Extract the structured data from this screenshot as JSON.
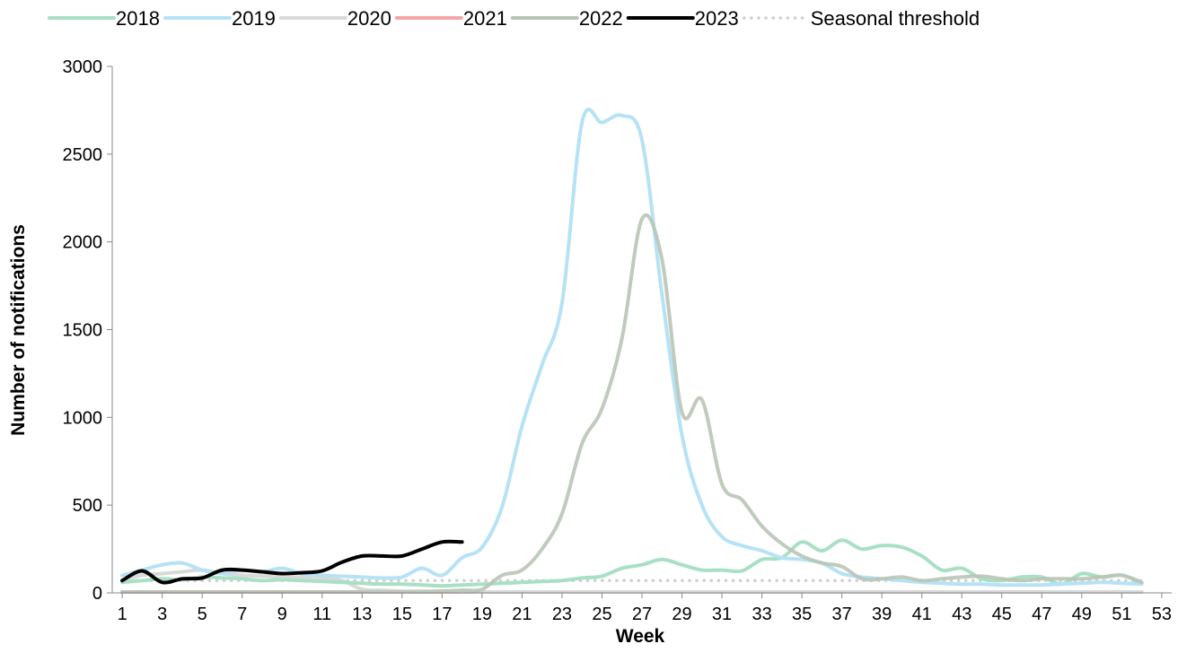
{
  "chart_data": {
    "type": "line",
    "title": "",
    "xlabel": "Week",
    "ylabel": "Number of notifications",
    "xlim": [
      0.5,
      53.5
    ],
    "ylim": [
      0,
      3000
    ],
    "y_ticks": [
      0,
      500,
      1000,
      1500,
      2000,
      2500,
      3000
    ],
    "x_ticks": [
      1,
      3,
      5,
      7,
      9,
      11,
      13,
      15,
      17,
      19,
      21,
      23,
      25,
      27,
      29,
      31,
      33,
      35,
      37,
      39,
      41,
      43,
      45,
      47,
      49,
      51,
      53
    ],
    "grid": false,
    "legend_position": "top",
    "series": [
      {
        "name": "2018",
        "color": "#a8e0c4",
        "dash": "solid",
        "x": [
          1,
          2,
          3,
          4,
          5,
          6,
          7,
          8,
          9,
          10,
          11,
          12,
          13,
          14,
          15,
          16,
          17,
          18,
          19,
          20,
          21,
          22,
          23,
          24,
          25,
          26,
          27,
          28,
          29,
          30,
          31,
          32,
          33,
          34,
          35,
          36,
          37,
          38,
          39,
          40,
          41,
          42,
          43,
          44,
          45,
          46,
          47,
          48,
          49,
          50,
          51,
          52
        ],
        "y": [
          60,
          70,
          80,
          75,
          90,
          85,
          80,
          70,
          75,
          70,
          65,
          60,
          55,
          50,
          50,
          45,
          40,
          45,
          50,
          55,
          60,
          65,
          70,
          85,
          95,
          140,
          160,
          190,
          160,
          130,
          130,
          125,
          190,
          200,
          290,
          240,
          300,
          250,
          270,
          260,
          210,
          130,
          140,
          80,
          70,
          90,
          90,
          50,
          110,
          90,
          100,
          55
        ]
      },
      {
        "name": "2019",
        "color": "#b5e2f5",
        "dash": "solid",
        "x": [
          1,
          2,
          3,
          4,
          5,
          6,
          7,
          8,
          9,
          10,
          11,
          12,
          13,
          14,
          15,
          16,
          17,
          18,
          19,
          20,
          21,
          22,
          23,
          24,
          25,
          26,
          27,
          28,
          29,
          30,
          31,
          32,
          33,
          34,
          35,
          36,
          37,
          38,
          39,
          40,
          41,
          42,
          43,
          44,
          45,
          46,
          47,
          48,
          49,
          50,
          51,
          52
        ],
        "y": [
          100,
          130,
          160,
          170,
          130,
          110,
          130,
          120,
          140,
          110,
          100,
          95,
          90,
          85,
          90,
          140,
          100,
          200,
          260,
          490,
          950,
          1300,
          1650,
          2680,
          2680,
          2720,
          2580,
          1700,
          900,
          500,
          320,
          270,
          240,
          200,
          190,
          170,
          110,
          90,
          80,
          70,
          60,
          55,
          50,
          50,
          45,
          45,
          45,
          50,
          55,
          60,
          55,
          50
        ]
      },
      {
        "name": "2020",
        "color": "#d9d9d9",
        "dash": "solid",
        "x": [
          1,
          2,
          3,
          4,
          5,
          6,
          7,
          8,
          9,
          10,
          11,
          12,
          13,
          14,
          15,
          16,
          17,
          18,
          19,
          20,
          21,
          22,
          23,
          24,
          25,
          26,
          27,
          28,
          29,
          30,
          31,
          32,
          33,
          34,
          35,
          36,
          37,
          38,
          39,
          40,
          41,
          42,
          43,
          44,
          45,
          46,
          47,
          48,
          49,
          50,
          51,
          52
        ],
        "y": [
          70,
          100,
          110,
          120,
          130,
          110,
          100,
          95,
          90,
          90,
          85,
          70,
          20,
          15,
          10,
          10,
          8,
          6,
          5,
          5,
          5,
          5,
          5,
          5,
          5,
          5,
          5,
          5,
          5,
          5,
          5,
          5,
          5,
          5,
          5,
          5,
          5,
          5,
          5,
          5,
          5,
          5,
          5,
          5,
          5,
          5,
          5,
          5,
          5,
          5,
          5,
          5
        ]
      },
      {
        "name": "2021",
        "color": "#f4a6a6",
        "dash": "solid",
        "x": [
          1,
          2,
          3,
          4,
          5,
          6,
          7,
          8,
          9,
          10,
          11,
          12,
          13,
          14,
          15,
          16,
          17,
          18,
          19,
          20,
          21,
          22,
          23,
          24,
          25,
          26,
          27,
          28,
          29,
          30,
          31,
          32,
          33,
          34,
          35,
          36,
          37,
          38,
          39,
          40,
          41,
          42,
          43,
          44,
          45,
          46,
          47,
          48,
          49,
          50,
          51,
          52
        ],
        "y": [
          5,
          5,
          5,
          5,
          5,
          5,
          5,
          5,
          5,
          5,
          5,
          5,
          5,
          5,
          5,
          5,
          5,
          5,
          5,
          5,
          5,
          5,
          5,
          5,
          5,
          5,
          5,
          5,
          5,
          5,
          5,
          5,
          5,
          5,
          5,
          5,
          5,
          5,
          5,
          5,
          5,
          5,
          5,
          5,
          5,
          5,
          5,
          5,
          5,
          5,
          5,
          5
        ]
      },
      {
        "name": "2022",
        "color": "#b9c4b6",
        "dash": "solid",
        "x": [
          1,
          2,
          3,
          4,
          5,
          6,
          7,
          8,
          9,
          10,
          11,
          12,
          13,
          14,
          15,
          16,
          17,
          18,
          19,
          20,
          21,
          22,
          23,
          24,
          25,
          26,
          27,
          28,
          29,
          30,
          31,
          32,
          33,
          34,
          35,
          36,
          37,
          38,
          39,
          40,
          41,
          42,
          43,
          44,
          45,
          46,
          47,
          48,
          49,
          50,
          51,
          52
        ],
        "y": [
          5,
          5,
          5,
          5,
          5,
          5,
          5,
          5,
          5,
          5,
          5,
          5,
          5,
          5,
          5,
          5,
          10,
          15,
          20,
          100,
          130,
          250,
          450,
          850,
          1050,
          1450,
          2130,
          1900,
          1030,
          1100,
          620,
          530,
          380,
          280,
          210,
          170,
          150,
          80,
          80,
          90,
          70,
          80,
          90,
          95,
          80,
          70,
          80,
          80,
          80,
          90,
          100,
          60
        ]
      },
      {
        "name": "2023",
        "color": "#000000",
        "dash": "solid",
        "x": [
          1,
          2,
          3,
          4,
          5,
          6,
          7,
          8,
          9,
          10,
          11,
          12,
          13,
          14,
          15,
          16,
          17,
          18
        ],
        "y": [
          70,
          125,
          60,
          80,
          85,
          130,
          130,
          120,
          110,
          115,
          125,
          175,
          210,
          210,
          210,
          250,
          290,
          290
        ]
      },
      {
        "name": "Seasonal threshold",
        "color": "#d0d0d0",
        "dash": "dotted",
        "x": [
          1,
          2,
          3,
          4,
          5,
          6,
          7,
          8,
          9,
          10,
          11,
          12,
          13,
          14,
          15,
          16,
          17,
          18,
          19,
          20,
          21,
          22,
          23,
          24,
          25,
          26,
          27,
          28,
          29,
          30,
          31,
          32,
          33,
          34,
          35,
          36,
          37,
          38,
          39,
          40,
          41,
          42,
          43,
          44,
          45,
          46,
          47,
          48,
          49,
          50,
          51,
          52
        ],
        "y": [
          70,
          70,
          70,
          70,
          70,
          70,
          70,
          70,
          70,
          70,
          70,
          70,
          70,
          70,
          70,
          70,
          70,
          70,
          70,
          70,
          70,
          70,
          70,
          70,
          70,
          70,
          70,
          70,
          70,
          70,
          70,
          70,
          70,
          70,
          70,
          70,
          70,
          70,
          70,
          70,
          70,
          70,
          70,
          70,
          70,
          70,
          70,
          70,
          70,
          70,
          70,
          70
        ]
      }
    ]
  }
}
